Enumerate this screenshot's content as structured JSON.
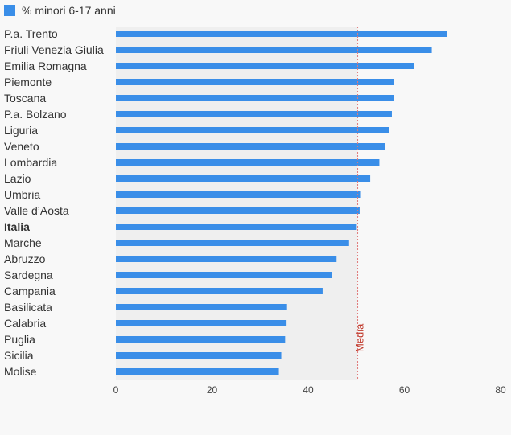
{
  "legend": {
    "label": "% minori 6-17 anni"
  },
  "colors": {
    "bar": "#3a8ee8",
    "media_line": "#e07a7a",
    "media_text": "#c0392b",
    "shade": "#efefef"
  },
  "chart_data": {
    "type": "bar",
    "orientation": "horizontal",
    "categories": [
      "P.a. Trento",
      "Friuli Venezia Giulia",
      "Emilia Romagna",
      "Piemonte",
      "Toscana",
      "P.a. Bolzano",
      "Liguria",
      "Veneto",
      "Lombardia",
      "Lazio",
      "Umbria",
      "Valle d’Aosta",
      "Italia",
      "Marche",
      "Abruzzo",
      "Sardegna",
      "Campania",
      "Basilicata",
      "Calabria",
      "Puglia",
      "Sicilia",
      "Molise"
    ],
    "highlight": "Italia",
    "series": [
      {
        "name": "% minori 6-17 anni",
        "values": [
          68.8,
          65.7,
          62.0,
          57.9,
          57.8,
          57.4,
          56.9,
          56.0,
          54.8,
          52.9,
          50.8,
          50.7,
          50.1,
          48.5,
          45.9,
          45.0,
          43.0,
          35.6,
          35.5,
          35.2,
          34.4,
          33.9
        ]
      }
    ],
    "xlim": [
      0,
      80
    ],
    "xticks": [
      0,
      20,
      40,
      60,
      80
    ],
    "reference_line": {
      "value": 50.3,
      "label": "Media"
    },
    "legend_position": "top-left"
  }
}
